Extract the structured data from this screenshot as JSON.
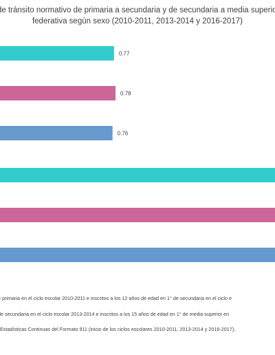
{
  "title": [
    "de tránsito normativo de primaria a secundaria y de secundaria a media superior",
    "federativa según sexo (2010-2011, 2013-2014 y 2016-2017)"
  ],
  "notes": [
    "e primaria en el ciclo escolar 2010-2011 e inscritos a los 12 años de edad en 1° de secundaria en el ciclo e",
    "de secundaria en el ciclo escolar 2013-2014 e inscritos a los 15 años de edad en 1° de media superior en",
    "Estadísticas Continuas del Formato 911 (inicio de los ciclos escolares 2010-2011, 2013-2014 y 2016-2017),"
  ],
  "colors": {
    "teal": "#33CCCC",
    "pink": "#CC6699",
    "blue": "#6699CC"
  },
  "chart_data": {
    "type": "bar",
    "orientation": "horizontal",
    "bars": [
      {
        "value": 0.77,
        "label": "0.77",
        "color": "#33CCCC"
      },
      {
        "value": 0.78,
        "label": "0.78",
        "color": "#CC6699"
      },
      {
        "value": 0.76,
        "label": "0.76",
        "color": "#6699CC"
      },
      {
        "value": null,
        "label": "",
        "color": "#33CCCC"
      },
      {
        "value": null,
        "label": "",
        "color": "#CC6699"
      },
      {
        "value": null,
        "label": "",
        "color": "#6699CC"
      }
    ],
    "grid": false,
    "legend": "none"
  }
}
